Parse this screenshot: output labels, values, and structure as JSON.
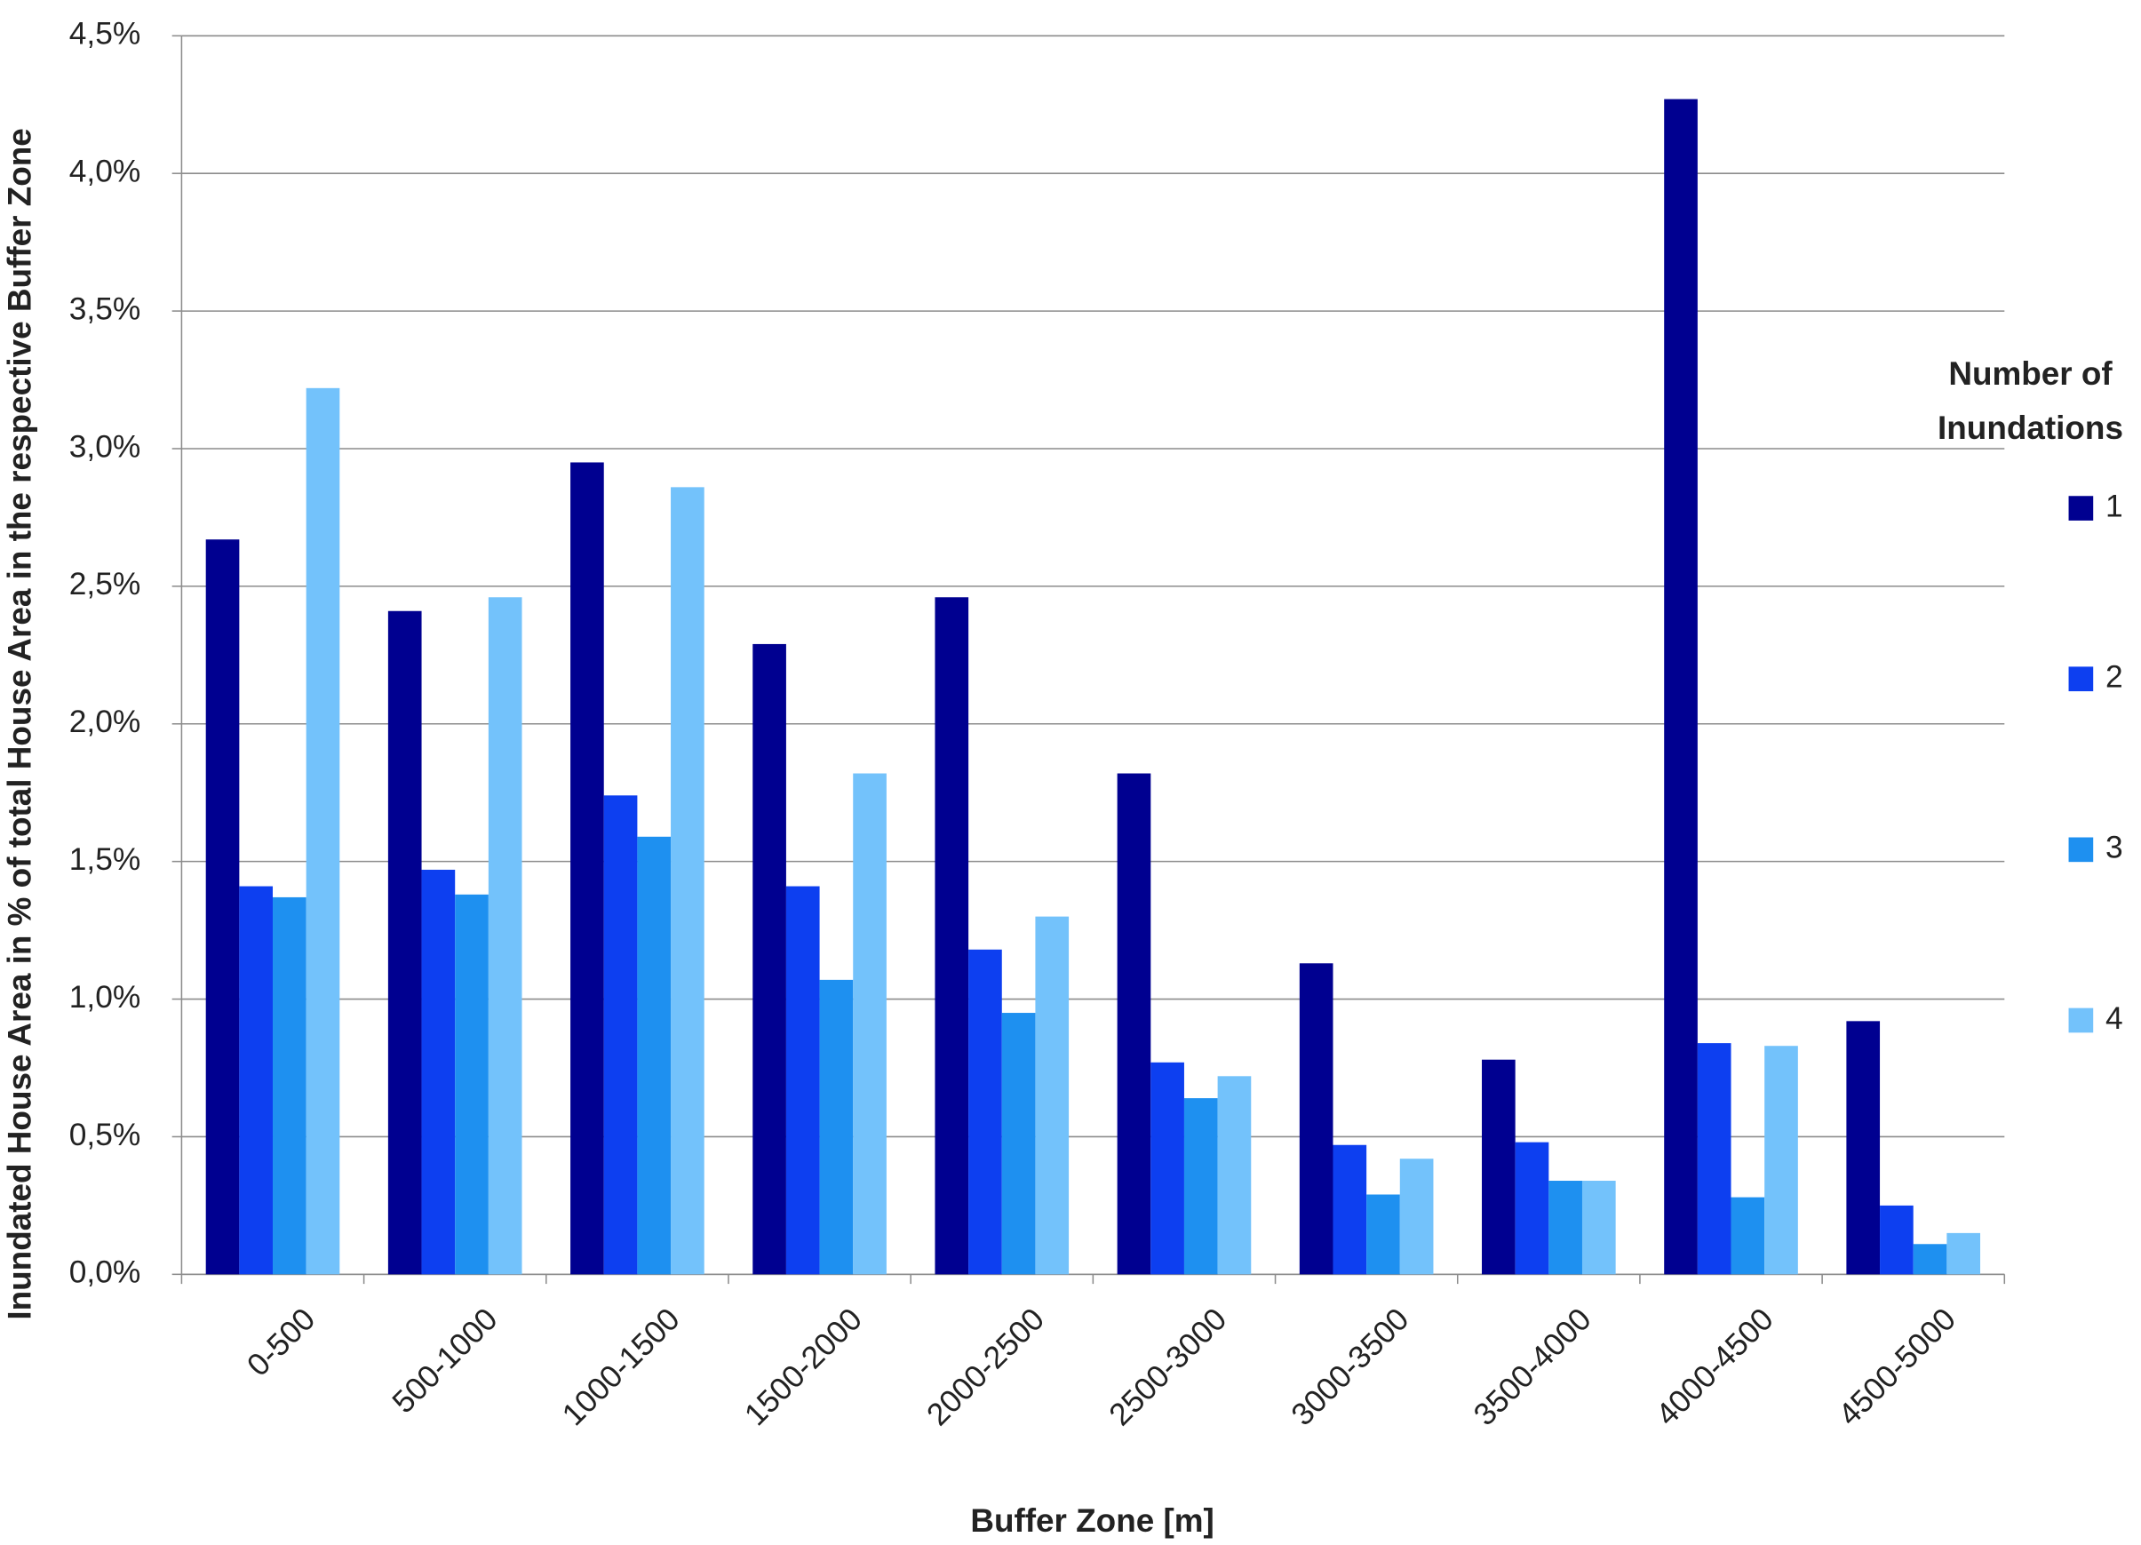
{
  "chart_data": {
    "type": "bar",
    "x_label": "Buffer Zone [m]",
    "y_label": "Inundated House Area in % of total House Area in the respective Buffer Zone",
    "legend_title": [
      "Number of",
      "Inundations"
    ],
    "legend_position": "right",
    "grid": true,
    "categories": [
      "0-500",
      "500-1000",
      "1000-1500",
      "1500-2000",
      "2000-2500",
      "2500-3000",
      "3000-3500",
      "3500-4000",
      "4000-4500",
      "4500-5000"
    ],
    "series": [
      {
        "name": "1",
        "color": "#000090",
        "values": [
          2.67,
          2.41,
          2.95,
          2.29,
          2.46,
          1.82,
          1.13,
          0.78,
          4.27,
          0.92
        ]
      },
      {
        "name": "2",
        "color": "#0d3ff0",
        "values": [
          1.41,
          1.47,
          1.74,
          1.41,
          1.18,
          0.77,
          0.47,
          0.48,
          0.84,
          0.25
        ]
      },
      {
        "name": "3",
        "color": "#1e90f0",
        "values": [
          1.37,
          1.38,
          1.59,
          1.07,
          0.95,
          0.64,
          0.29,
          0.34,
          0.28,
          0.11
        ]
      },
      {
        "name": "4",
        "color": "#73c2fb",
        "values": [
          3.22,
          2.46,
          2.86,
          1.82,
          1.3,
          0.72,
          0.42,
          0.34,
          0.83,
          0.15
        ]
      }
    ],
    "ylim": [
      0,
      4.5
    ],
    "yticks": [
      {
        "value": 0,
        "label": "0,0%"
      },
      {
        "value": 0.5,
        "label": "0,5%"
      },
      {
        "value": 1,
        "label": "1,0%"
      },
      {
        "value": 1.5,
        "label": "1,5%"
      },
      {
        "value": 2,
        "label": "2,0%"
      },
      {
        "value": 2.5,
        "label": "2,5%"
      },
      {
        "value": 3,
        "label": "3,0%"
      },
      {
        "value": 3.5,
        "label": "3,5%"
      },
      {
        "value": 4,
        "label": "4,0%"
      },
      {
        "value": 4.5,
        "label": "4,5%"
      }
    ]
  }
}
